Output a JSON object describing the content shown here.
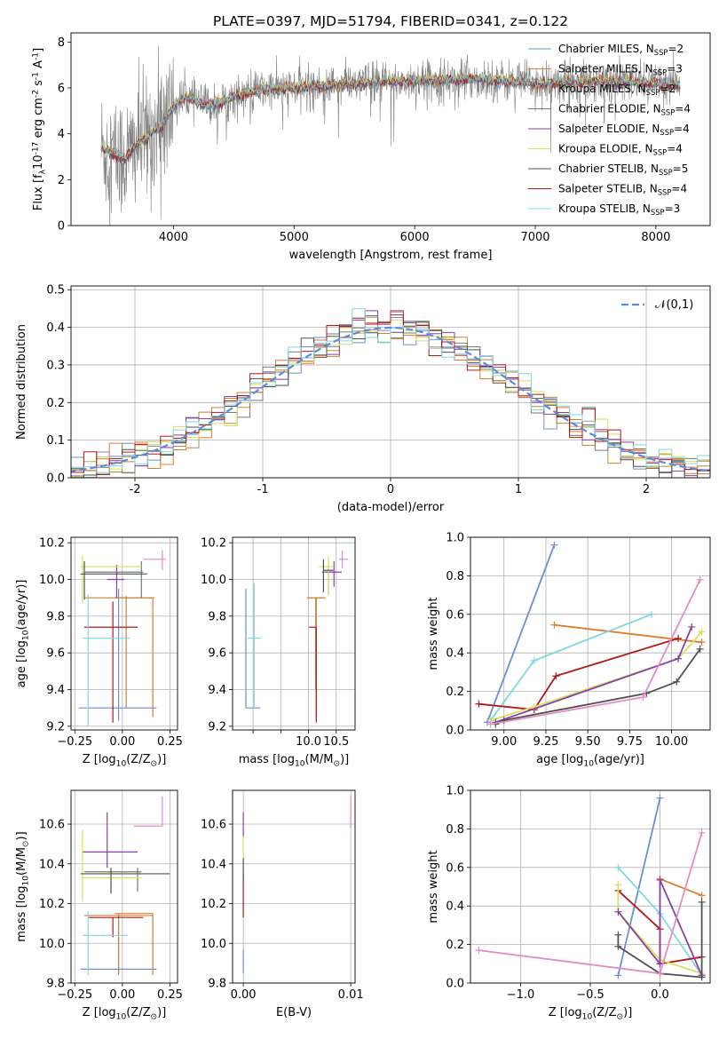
{
  "figure": {
    "title": "PLATE=0397, MJD=51794, FIBERID=0341, z=0.122"
  },
  "series": [
    {
      "name": "Chabrier MILES, N$_{SSP}$=2",
      "color": "#6a8ed8"
    },
    {
      "name": "Salpeter MILES, N$_{SSP}$=3",
      "color": "#e07b28"
    },
    {
      "name": "Kroupa MILES, N$_{SSP}$=2",
      "color": "#c4833c"
    },
    {
      "name": "Chabrier ELODIE, N$_{SSP}$=4",
      "color": "#6e7f6e"
    },
    {
      "name": "Salpeter ELODIE, N$_{SSP}$=4",
      "color": "#8a3fa8"
    },
    {
      "name": "Kroupa ELODIE, N$_{SSP}$=4",
      "color": "#d6e05a"
    },
    {
      "name": "Chabrier STELIB, N$_{SSP}$=5",
      "color": "#505050"
    },
    {
      "name": "Salpeter STELIB, N$_{SSP}$=4",
      "color": "#b01818"
    },
    {
      "name": "Kroupa STELIB, N$_{SSP}$=3",
      "color": "#7fd8e0"
    }
  ],
  "chart_data": [
    {
      "id": "spectrum",
      "type": "line",
      "xlabel": "wavelength [Angstrom, rest frame]",
      "ylabel": "Flux [f$_\\lambda$10$^{-17}$ erg cm$^{-2}$ s$^{-1}$ A$^{-1}$]",
      "xlim": [
        3150,
        8450
      ],
      "ylim": [
        0,
        8.4
      ],
      "xticks": [
        4000,
        5000,
        6000,
        7000,
        8000
      ],
      "yticks": [
        0,
        2,
        4,
        6,
        8
      ],
      "wavelength_range": [
        3400,
        8200
      ],
      "continuum": {
        "x": [
          3400,
          3500,
          3600,
          3700,
          3800,
          3900,
          4000,
          4100,
          4200,
          4300,
          4500,
          4700,
          5000,
          5500,
          6000,
          6500,
          7000,
          7500,
          8000,
          8200
        ],
        "y": [
          3.4,
          3.1,
          2.9,
          3.6,
          3.9,
          4.4,
          5.2,
          5.6,
          5.4,
          5.2,
          5.6,
          5.9,
          6.0,
          6.2,
          6.3,
          6.4,
          6.2,
          6.3,
          6.2,
          6.1
        ]
      },
      "legend": "upper right"
    },
    {
      "id": "residuals",
      "type": "bar",
      "xlabel": "(data-model)/error",
      "ylabel": "Normed distribution",
      "xlim": [
        -2.5,
        2.5
      ],
      "ylim": [
        0,
        0.51
      ],
      "xticks": [
        -2,
        -1,
        0,
        1,
        2
      ],
      "yticks": [
        0.0,
        0.1,
        0.2,
        0.3,
        0.4,
        0.5
      ],
      "bin_width": 0.1,
      "gaussian": {
        "label": "$\\mathcal{N}(0,1)$",
        "color": "#5b8bd9",
        "mean": 0,
        "sigma": 1
      },
      "legend": "upper right",
      "grid": true
    },
    {
      "id": "age_vs_Z",
      "type": "scatter",
      "xlabel": "Z [log$_{10}$(Z/Z$_\\odot$)]",
      "ylabel": "age  [log$_{10}$($age/yr$)]",
      "xlim": [
        -0.27,
        0.29
      ],
      "ylim": [
        9.18,
        10.23
      ],
      "xticks": [
        -0.25,
        0.0,
        0.25
      ],
      "xticklabels": [
        "−0.25",
        "0.00",
        "0.25"
      ],
      "yticks": [
        9.2,
        9.4,
        9.6,
        9.8,
        10.0,
        10.2
      ],
      "grid": true,
      "points": [
        {
          "s": 0,
          "x": -0.02,
          "xerr": [
            0.21,
            0.2
          ],
          "y": 9.3,
          "yerr": [
            0.07,
            0.65
          ]
        },
        {
          "s": 1,
          "x": 0.16,
          "xerr": [
            0.2,
            0.0
          ],
          "y": 9.9,
          "yerr": [
            0.65,
            0.0
          ]
        },
        {
          "s": 2,
          "x": 0.02,
          "xerr": [
            0.22,
            0.15
          ],
          "y": 9.9,
          "yerr": [
            0.6,
            0.01
          ]
        },
        {
          "s": 3,
          "x": 0.1,
          "xerr": [
            0.3,
            0.01
          ],
          "y": 10.04,
          "yerr": [
            0.14,
            0.06
          ]
        },
        {
          "s": 4,
          "x": -0.03,
          "xerr": [
            0.05,
            0.04
          ],
          "y": 10.0,
          "yerr": [
            0.1,
            0.08
          ]
        },
        {
          "s": 5,
          "x": -0.21,
          "xerr": [
            0.01,
            0.31
          ],
          "y": 10.07,
          "yerr": [
            0.2,
            0.06
          ]
        },
        {
          "s": 6,
          "x": -0.2,
          "xerr": [
            0.02,
            0.33
          ],
          "y": 10.03,
          "yerr": [
            0.14,
            0.07
          ]
        },
        {
          "s": 7,
          "x": -0.05,
          "xerr": [
            0.15,
            0.13
          ],
          "y": 9.74,
          "yerr": [
            0.52,
            0.14
          ]
        },
        {
          "s": 8,
          "x": -0.18,
          "xerr": [
            0.03,
            0.22
          ],
          "y": 9.68,
          "yerr": [
            0.48,
            0.24
          ]
        },
        {
          "s": 9,
          "x": 0.21,
          "xerr": [
            0.1,
            0.02
          ],
          "y": 10.11,
          "yerr": [
            0.06,
            0.05
          ],
          "color": "#e48cc4"
        }
      ]
    },
    {
      "id": "age_vs_mass",
      "type": "scatter",
      "xlabel": "mass [log$_{10}$($M/M_\\odot$)]",
      "xlim": [
        8.63,
        10.84
      ],
      "ylim": [
        9.18,
        10.23
      ],
      "xticks": [
        9.0,
        9.5,
        10.0,
        10.5
      ],
      "xticklabels": [
        "",
        "",
        "10.0",
        "10.5"
      ],
      "yticks": [
        9.2,
        9.4,
        9.6,
        9.8,
        10.0,
        10.2
      ],
      "grid": true,
      "points": [
        {
          "s": 0,
          "x": 8.87,
          "xerr": [
            0.0,
            0.26
          ],
          "y": 9.3,
          "yerr": [
            0.0,
            0.65
          ]
        },
        {
          "s": 1,
          "x": 10.14,
          "xerr": [
            0.17,
            0.17
          ],
          "y": 9.9,
          "yerr": [
            0.65,
            0.0
          ]
        },
        {
          "s": 2,
          "x": 10.13,
          "xerr": [
            0.15,
            0.15
          ],
          "y": 9.9,
          "yerr": [
            0.5,
            0.0
          ]
        },
        {
          "s": 3,
          "x": 10.36,
          "xerr": [
            0.12,
            0.05
          ],
          "y": 10.04,
          "yerr": [
            0.12,
            0.04
          ]
        },
        {
          "s": 4,
          "x": 10.46,
          "xerr": [
            0.15,
            0.14
          ],
          "y": 10.04,
          "yerr": [
            0.08,
            0.06
          ]
        },
        {
          "s": 5,
          "x": 10.36,
          "xerr": [
            0.18,
            0.08
          ],
          "y": 10.07,
          "yerr": [
            0.16,
            0.06
          ]
        },
        {
          "s": 6,
          "x": 10.27,
          "xerr": [
            0.0,
            0.18
          ],
          "y": 10.05,
          "yerr": [
            0.12,
            0.06
          ]
        },
        {
          "s": 7,
          "x": 10.14,
          "xerr": [
            0.13,
            0.0
          ],
          "y": 9.74,
          "yerr": [
            0.52,
            0.0
          ]
        },
        {
          "s": 8,
          "x": 9.02,
          "xerr": [
            0.12,
            0.12
          ],
          "y": 9.68,
          "yerr": [
            0.38,
            0.3
          ]
        },
        {
          "s": 9,
          "x": 10.61,
          "xerr": [
            0.06,
            0.11
          ],
          "y": 10.11,
          "yerr": [
            0.05,
            0.05
          ],
          "color": "#e48cc4"
        }
      ]
    },
    {
      "id": "weight_vs_age",
      "type": "line",
      "xlabel": "age  [log$_{10}$($age/yr$)]",
      "ylabel": "mass weight",
      "xlim": [
        8.8,
        10.23
      ],
      "ylim": [
        0.0,
        1.0
      ],
      "xticks": [
        9.0,
        9.25,
        9.5,
        9.75,
        10.0
      ],
      "xticklabels": [
        "9.00",
        "9.25",
        "9.50",
        "9.75",
        "10.00"
      ],
      "yticks": [
        0.0,
        0.2,
        0.4,
        0.6,
        0.8,
        1.0
      ],
      "grid": true,
      "lines": [
        {
          "s": 0,
          "x": [
            8.9,
            9.3
          ],
          "y": [
            0.04,
            0.96
          ]
        },
        {
          "s": 1,
          "x": [
            9.3,
            10.18
          ],
          "y": [
            0.545,
            0.455
          ]
        },
        {
          "s": 8,
          "x": [
            8.92,
            9.18,
            9.88
          ],
          "y": [
            0.05,
            0.36,
            0.6
          ]
        },
        {
          "s": 7,
          "x": [
            8.85,
            9.18,
            9.31,
            10.04
          ],
          "y": [
            0.135,
            0.105,
            0.28,
            0.475
          ]
        },
        {
          "s": 5,
          "x": [
            8.92,
            9.18,
            10.04,
            10.18
          ],
          "y": [
            0.05,
            0.12,
            0.37,
            0.51
          ]
        },
        {
          "s": 4,
          "x": [
            8.95,
            10.04,
            10.12
          ],
          "y": [
            0.04,
            0.37,
            0.535
          ]
        },
        {
          "s": 6,
          "x": [
            8.95,
            9.0,
            9.85,
            10.03,
            10.17
          ],
          "y": [
            0.03,
            0.05,
            0.19,
            0.25,
            0.42
          ]
        },
        {
          "s": 9,
          "x": [
            8.92,
            9.83,
            10.17
          ],
          "y": [
            0.03,
            0.17,
            0.78
          ],
          "color": "#e48cc4"
        }
      ]
    },
    {
      "id": "mass_vs_Z",
      "type": "scatter",
      "xlabel": "Z [log$_{10}$(Z/Z$_\\odot$)]",
      "ylabel": "mass [log$_{10}$($M/M_\\odot$)]",
      "xlim": [
        -0.27,
        0.29
      ],
      "ylim": [
        9.8,
        10.77
      ],
      "xticks": [
        -0.25,
        0.0,
        0.25
      ],
      "xticklabels": [
        "−0.25",
        "0.00",
        "0.25"
      ],
      "yticks": [
        9.8,
        10.0,
        10.2,
        10.4,
        10.6
      ],
      "grid": true,
      "points": [
        {
          "s": 0,
          "x": -0.02,
          "xerr": [
            0.2,
            0.2
          ],
          "y": 9.87,
          "yerr": [
            0.02,
            0.28
          ]
        },
        {
          "s": 1,
          "x": 0.16,
          "xerr": [
            0.2,
            0.0
          ],
          "y": 10.15,
          "yerr": [
            0.31,
            0.0
          ]
        },
        {
          "s": 2,
          "x": -0.02,
          "xerr": [
            0.18,
            0.18
          ],
          "y": 10.14,
          "yerr": [
            0.3,
            0.0
          ]
        },
        {
          "s": 3,
          "x": 0.08,
          "xerr": [
            0.28,
            0.02
          ],
          "y": 10.36,
          "yerr": [
            0.1,
            0.02
          ]
        },
        {
          "s": 4,
          "x": -0.08,
          "xerr": [
            0.13,
            0.16
          ],
          "y": 10.46,
          "yerr": [
            0.08,
            0.2
          ]
        },
        {
          "s": 5,
          "x": -0.21,
          "xerr": [
            0.0,
            0.31
          ],
          "y": 10.33,
          "yerr": [
            0.12,
            0.24
          ]
        },
        {
          "s": 6,
          "x": -0.06,
          "xerr": [
            0.16,
            0.31
          ],
          "y": 10.35,
          "yerr": [
            0.1,
            0.03
          ]
        },
        {
          "s": 7,
          "x": -0.05,
          "xerr": [
            0.13,
            0.16
          ],
          "y": 10.13,
          "yerr": [
            0.1,
            0.0
          ]
        },
        {
          "s": 8,
          "x": -0.18,
          "xerr": [
            0.03,
            0.21
          ],
          "y": 10.04,
          "yerr": [
            0.2,
            0.12
          ]
        },
        {
          "s": 9,
          "x": 0.21,
          "xerr": [
            0.15,
            0.0
          ],
          "y": 10.59,
          "yerr": [
            0.0,
            0.15
          ],
          "color": "#e48cc4"
        }
      ]
    },
    {
      "id": "mass_vs_ebv",
      "type": "scatter",
      "xlabel": "E(B-V)",
      "xlim": [
        -0.001,
        0.0104
      ],
      "ylim": [
        9.8,
        10.77
      ],
      "xticks": [
        0.0,
        0.01
      ],
      "xticklabels": [
        "0.00",
        "0.01"
      ],
      "yticks": [
        9.8,
        10.0,
        10.2,
        10.4,
        10.6
      ],
      "grid": true,
      "points": [
        {
          "s": 0,
          "x": 0.0,
          "xerr": [
            0,
            0
          ],
          "y": 9.87,
          "yerr": [
            0.02,
            0.1
          ]
        },
        {
          "s": 5,
          "x": 0.0,
          "xerr": [
            0,
            0
          ],
          "y": 10.45,
          "yerr": [
            0.05,
            0.12
          ]
        },
        {
          "s": 4,
          "x": 0.0,
          "xerr": [
            0,
            0
          ],
          "y": 10.59,
          "yerr": [
            0.05,
            0.07
          ]
        },
        {
          "s": 7,
          "x": 0.0,
          "xerr": [
            0,
            0
          ],
          "y": 10.25,
          "yerr": [
            0.12,
            0.1
          ]
        },
        {
          "s": 6,
          "x": 0.0,
          "xerr": [
            0,
            0
          ],
          "y": 10.37,
          "yerr": [
            0.06,
            0.06
          ]
        },
        {
          "s": 9,
          "x": 0.01,
          "xerr": [
            0,
            0
          ],
          "y": 10.62,
          "yerr": [
            0.04,
            0.12
          ],
          "color": "#e48cc4"
        }
      ]
    },
    {
      "id": "weight_vs_Z",
      "type": "line",
      "xlabel": "Z [log$_{10}$(Z/Z$_\\odot$)]",
      "ylabel": "mass weight",
      "xlim": [
        -1.36,
        0.36
      ],
      "ylim": [
        0.0,
        1.0
      ],
      "xticks": [
        -1.0,
        -0.5,
        0.0
      ],
      "xticklabels": [
        "−1.0",
        "−0.5",
        "0.0"
      ],
      "yticks": [
        0.0,
        0.2,
        0.4,
        0.6,
        0.8,
        1.0
      ],
      "grid": true,
      "lines": [
        {
          "s": 0,
          "x": [
            -0.3,
            0.0
          ],
          "y": [
            0.04,
            0.96
          ]
        },
        {
          "s": 1,
          "x": [
            0.0,
            0.3
          ],
          "y": [
            0.54,
            0.455
          ]
        },
        {
          "s": 8,
          "x": [
            -0.3,
            0.0,
            0.3
          ],
          "y": [
            0.6,
            0.36,
            0.04
          ]
        },
        {
          "s": 7,
          "x": [
            -0.3,
            0.0,
            0.0,
            0.3
          ],
          "y": [
            0.48,
            0.28,
            0.1,
            0.135
          ]
        },
        {
          "s": 5,
          "x": [
            -0.3,
            -0.3,
            0.0,
            0.3
          ],
          "y": [
            0.51,
            0.37,
            0.12,
            0.05
          ]
        },
        {
          "s": 4,
          "x": [
            -0.3,
            0.0,
            0.0,
            0.3
          ],
          "y": [
            0.37,
            0.1,
            0.535,
            0.04
          ]
        },
        {
          "s": 6,
          "x": [
            -0.3,
            -0.3,
            0.0,
            0.3,
            0.3
          ],
          "y": [
            0.25,
            0.19,
            0.05,
            0.03,
            0.42
          ]
        },
        {
          "s": 9,
          "x": [
            -1.3,
            0.0,
            0.3
          ],
          "y": [
            0.17,
            0.05,
            0.78
          ],
          "color": "#e48cc4"
        }
      ]
    }
  ]
}
